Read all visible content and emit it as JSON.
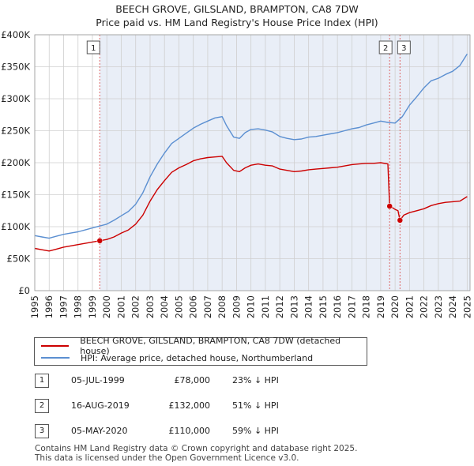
{
  "chart_data": {
    "type": "line",
    "title": "BEECH GROVE, GILSLAND, BRAMPTON, CA8 7DW",
    "subtitle": "Price paid vs. HM Land Registry's House Price Index (HPI)",
    "xlabel": "",
    "ylabel": "",
    "xlim": [
      1995,
      2025.2
    ],
    "ylim": [
      0,
      400000
    ],
    "y_ticks": [
      {
        "value": 0,
        "label": "£0"
      },
      {
        "value": 50000,
        "label": "£50K"
      },
      {
        "value": 100000,
        "label": "£100K"
      },
      {
        "value": 150000,
        "label": "£150K"
      },
      {
        "value": 200000,
        "label": "£200K"
      },
      {
        "value": 250000,
        "label": "£250K"
      },
      {
        "value": 300000,
        "label": "£300K"
      },
      {
        "value": 350000,
        "label": "£350K"
      },
      {
        "value": 400000,
        "label": "£400K"
      }
    ],
    "x_ticks": [
      "1995",
      "1996",
      "1997",
      "1998",
      "1999",
      "2000",
      "2001",
      "2002",
      "2003",
      "2004",
      "2005",
      "2006",
      "2007",
      "2008",
      "2009",
      "2010",
      "2011",
      "2012",
      "2013",
      "2014",
      "2015",
      "2016",
      "2017",
      "2018",
      "2019",
      "2020",
      "2021",
      "2022",
      "2023",
      "2024",
      "2025"
    ],
    "grid": true,
    "series": [
      {
        "name": "BEECH GROVE, GILSLAND, BRAMPTON, CA8 7DW (detached house)",
        "color": "#cc0000",
        "x": [
          1995.0,
          1995.5,
          1996.0,
          1996.5,
          1997.0,
          1997.5,
          1998.0,
          1998.5,
          1999.0,
          1999.51,
          2000.0,
          2000.5,
          2001.0,
          2001.5,
          2002.0,
          2002.5,
          2003.0,
          2003.5,
          2004.0,
          2004.5,
          2005.0,
          2005.5,
          2006.0,
          2006.5,
          2007.0,
          2007.5,
          2008.0,
          2008.3,
          2008.8,
          2009.2,
          2009.6,
          2010.0,
          2010.5,
          2011.0,
          2011.5,
          2012.0,
          2012.5,
          2013.0,
          2013.5,
          2014.0,
          2014.5,
          2015.0,
          2015.5,
          2016.0,
          2016.5,
          2017.0,
          2017.5,
          2018.0,
          2018.5,
          2019.0,
          2019.5,
          2019.62,
          2019.8,
          2020.0,
          2020.2,
          2020.34,
          2020.6,
          2021.0,
          2021.5,
          2022.0,
          2022.5,
          2023.0,
          2023.5,
          2024.0,
          2024.5,
          2025.0
        ],
        "values": [
          66000,
          64000,
          62000,
          65000,
          68000,
          70000,
          72000,
          74000,
          76000,
          78000,
          80000,
          84000,
          90000,
          95000,
          104000,
          118000,
          140000,
          158000,
          172000,
          185000,
          192000,
          197000,
          203000,
          206000,
          208000,
          209000,
          210000,
          200000,
          188000,
          186000,
          192000,
          196000,
          198000,
          196000,
          195000,
          190000,
          188000,
          186000,
          187000,
          189000,
          190000,
          191000,
          192000,
          193000,
          195000,
          197000,
          198000,
          199000,
          199000,
          200000,
          198000,
          132000,
          130000,
          127000,
          125000,
          110000,
          118000,
          122000,
          125000,
          128000,
          133000,
          136000,
          138000,
          139000,
          140000,
          147000
        ]
      },
      {
        "name": "HPI: Average price, detached house, Northumberland",
        "color": "#5b8fd1",
        "x": [
          1995.0,
          1995.5,
          1996.0,
          1996.5,
          1997.0,
          1997.5,
          1998.0,
          1998.5,
          1999.0,
          1999.5,
          2000.0,
          2000.5,
          2001.0,
          2001.5,
          2002.0,
          2002.5,
          2003.0,
          2003.5,
          2004.0,
          2004.5,
          2005.0,
          2005.5,
          2006.0,
          2006.5,
          2007.0,
          2007.5,
          2008.0,
          2008.3,
          2008.8,
          2009.2,
          2009.6,
          2010.0,
          2010.5,
          2011.0,
          2011.5,
          2012.0,
          2012.5,
          2013.0,
          2013.5,
          2014.0,
          2014.5,
          2015.0,
          2015.5,
          2016.0,
          2016.5,
          2017.0,
          2017.5,
          2018.0,
          2018.5,
          2019.0,
          2019.5,
          2020.0,
          2020.5,
          2021.0,
          2021.5,
          2022.0,
          2022.5,
          2023.0,
          2023.5,
          2024.0,
          2024.5,
          2025.0
        ],
        "values": [
          86000,
          84000,
          82000,
          85000,
          88000,
          90000,
          92000,
          95000,
          98000,
          101000,
          104000,
          110000,
          117000,
          124000,
          135000,
          153000,
          178000,
          198000,
          215000,
          230000,
          238000,
          246000,
          254000,
          260000,
          265000,
          270000,
          272000,
          258000,
          240000,
          238000,
          247000,
          252000,
          253000,
          251000,
          248000,
          241000,
          238000,
          236000,
          237000,
          240000,
          241000,
          243000,
          245000,
          247000,
          250000,
          253000,
          255000,
          259000,
          262000,
          265000,
          263000,
          262000,
          272000,
          290000,
          303000,
          317000,
          328000,
          332000,
          338000,
          343000,
          352000,
          370000
        ]
      }
    ],
    "sale_markers": [
      {
        "label": "1",
        "x": 1999.51,
        "value": 78000
      },
      {
        "label": "2",
        "x": 2019.62,
        "value": 132000
      },
      {
        "label": "3",
        "x": 2020.34,
        "value": 110000
      }
    ]
  },
  "legend": {
    "red_label": "BEECH GROVE, GILSLAND, BRAMPTON, CA8 7DW (detached house)",
    "blue_label": "HPI: Average price, detached house, Northumberland",
    "red_color": "#cc0000",
    "blue_color": "#5b8fd1"
  },
  "transactions": [
    {
      "num": "1",
      "date": "05-JUL-1999",
      "price": "£78,000",
      "hpi": "23% ↓ HPI"
    },
    {
      "num": "2",
      "date": "16-AUG-2019",
      "price": "£132,000",
      "hpi": "51% ↓ HPI"
    },
    {
      "num": "3",
      "date": "05-MAY-2020",
      "price": "£110,000",
      "hpi": "59% ↓ HPI"
    }
  ],
  "footer": {
    "line1": "Contains HM Land Registry data © Crown copyright and database right 2025.",
    "line2": "This data is licensed under the Open Government Licence v3.0."
  }
}
